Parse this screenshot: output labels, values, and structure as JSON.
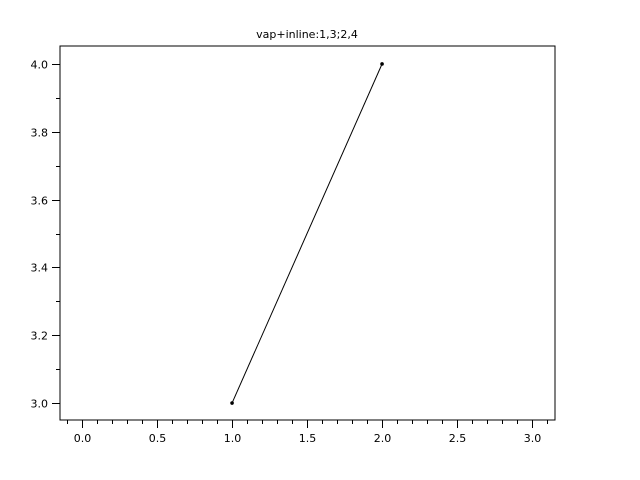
{
  "chart_data": {
    "type": "line",
    "title": "vap+inline:1,3;2,4",
    "xlabel": "",
    "ylabel": "",
    "xlim": [
      -0.147,
      3.153
    ],
    "ylim": [
      2.95,
      4.053
    ],
    "x_ticks": [
      "0.0",
      "0.5",
      "1.0",
      "1.5",
      "2.0",
      "2.5",
      "3.0"
    ],
    "y_ticks": [
      "3.0",
      "3.2",
      "3.4",
      "3.6",
      "3.8",
      "4.0"
    ],
    "x_minor_step": 0.1,
    "y_minor_step": 0.1,
    "grid": false,
    "series": [
      {
        "x": [
          1,
          2
        ],
        "y": [
          3,
          4
        ],
        "color": "#000000",
        "marker": "dot"
      }
    ]
  }
}
